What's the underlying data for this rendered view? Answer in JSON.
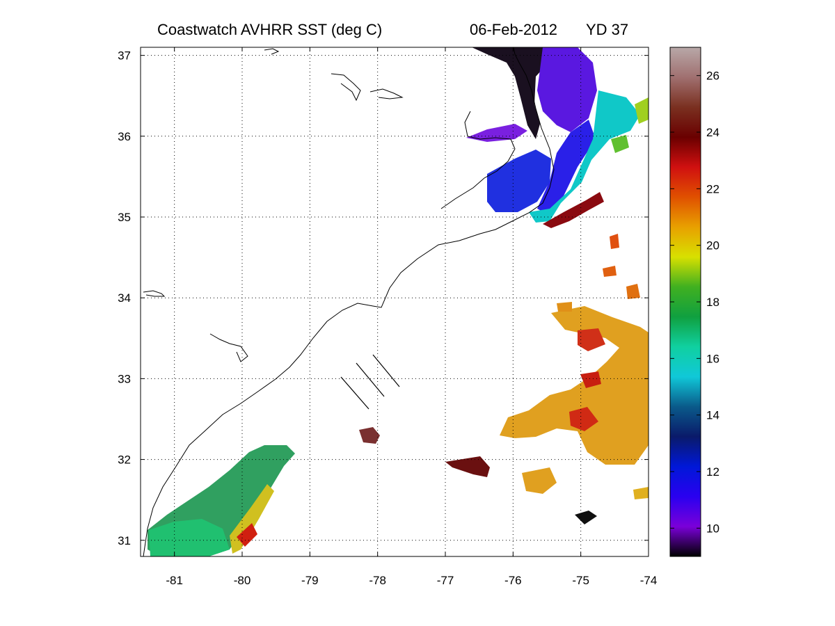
{
  "title": {
    "product": "Coastwatch   AVHRR   SST  (deg C)",
    "date": "06-Feb-2012",
    "yearday": "YD 37"
  },
  "map": {
    "lon_range": [
      -81.5,
      -74
    ],
    "lat_range": [
      30.8,
      37.1
    ],
    "x_ticks": [
      "-81",
      "-80",
      "-79",
      "-78",
      "-77",
      "-76",
      "-75",
      "-74"
    ],
    "y_ticks": [
      "37",
      "36",
      "35",
      "34",
      "33",
      "32",
      "31"
    ],
    "grid": "dotted"
  },
  "colorbar": {
    "range": [
      9,
      27
    ],
    "ticks": [
      "26",
      "24",
      "22",
      "20",
      "18",
      "16",
      "14",
      "12",
      "10"
    ],
    "colors": [
      "#000000",
      "#7a00d9",
      "#2a00f0",
      "#0018d8",
      "#0a1a6a",
      "#0a5a8a",
      "#10c8d8",
      "#10d0a0",
      "#10a040",
      "#40b020",
      "#d8e000",
      "#e8a000",
      "#e05000",
      "#d01010",
      "#6a0000",
      "#7a3020",
      "#a07070",
      "#b8a8a8"
    ]
  },
  "colors": {
    "cold": "#3a10e0",
    "cool": "#10c8d8",
    "mid": "#30a050",
    "warm": "#e0b020",
    "hot": "#d03010"
  }
}
